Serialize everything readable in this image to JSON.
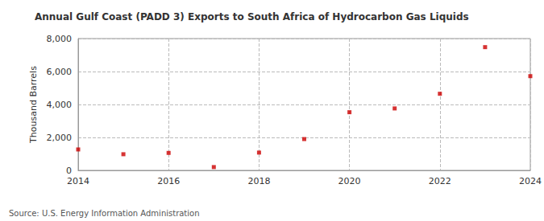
{
  "chart_data": {
    "type": "scatter",
    "title": "Annual Gulf Coast (PADD 3) Exports to South Africa of Hydrocarbon Gas Liquids",
    "y_label": "Thousand Barrels",
    "source": "Source: U.S. Energy Information Administration",
    "x": [
      2014,
      2015,
      2016,
      2017,
      2018,
      2019,
      2020,
      2021,
      2022,
      2023,
      2024
    ],
    "values": [
      1270,
      980,
      1060,
      200,
      1080,
      1900,
      3530,
      3760,
      4650,
      7480,
      5720
    ],
    "color": "#cc0000",
    "marker": "square",
    "xlim": [
      2014,
      2024
    ],
    "xticks": [
      2014,
      2016,
      2018,
      2020,
      2022,
      2024
    ],
    "ylim": [
      0,
      8000
    ],
    "yticks": [
      0,
      {
        "value": 2000,
        "label": "2,000"
      },
      {
        "value": 4000,
        "label": "4,000"
      },
      {
        "value": 6000,
        "label": "6,000"
      },
      {
        "value": 8000,
        "label": "8,000"
      }
    ],
    "grid": true
  }
}
